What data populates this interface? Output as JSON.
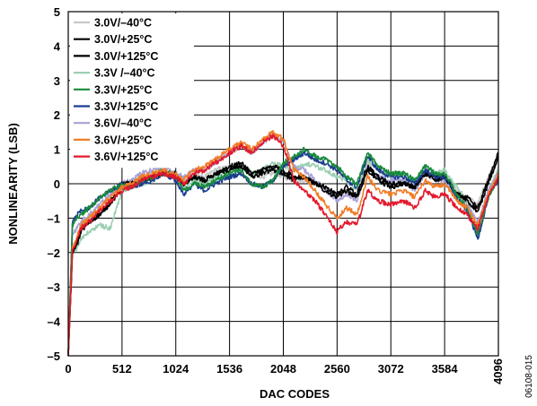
{
  "chart_data": {
    "type": "line",
    "title": "",
    "xlabel": "DAC CODES",
    "ylabel": "NONLINEARITY (LSB)",
    "xlim": [
      0,
      4096
    ],
    "ylim": [
      -5,
      5
    ],
    "xticks": [
      0,
      512,
      1024,
      1536,
      2048,
      2560,
      3072,
      3584,
      4096
    ],
    "yticks": [
      -5,
      -4,
      -3,
      -2,
      -1,
      0,
      1,
      2,
      3,
      4,
      5
    ],
    "grid": true,
    "legend_position": "top-left",
    "figure_id": "06108-015",
    "series": [
      {
        "name": "3.0V/–40°C",
        "color": "#c8c8c8",
        "x": [
          0,
          40,
          80,
          120,
          200,
          300,
          400,
          512,
          600,
          700,
          800,
          900,
          1024,
          1100,
          1200,
          1300,
          1400,
          1536,
          1650,
          1750,
          1850,
          1950,
          2048,
          2150,
          2250,
          2350,
          2450,
          2560,
          2650,
          2750,
          2850,
          2950,
          3072,
          3200,
          3300,
          3400,
          3500,
          3584,
          3700,
          3800,
          3900,
          4000,
          4096
        ],
        "y": [
          -5.0,
          -1.9,
          -1.7,
          -1.2,
          -1.0,
          -0.8,
          -0.6,
          0.0,
          0.0,
          0.2,
          0.3,
          0.4,
          0.3,
          0.1,
          0.3,
          0.2,
          0.4,
          0.5,
          0.5,
          0.3,
          0.2,
          0.3,
          0.2,
          0.1,
          0.1,
          0.0,
          -0.1,
          -0.4,
          -0.2,
          -0.4,
          0.6,
          0.2,
          0.0,
          0.1,
          0.0,
          0.4,
          0.2,
          0.3,
          -0.2,
          -0.4,
          -0.6,
          0.2,
          0.8
        ]
      },
      {
        "name": "3.0V/+25°C",
        "color": "#000000",
        "x": [
          0,
          40,
          80,
          120,
          200,
          300,
          400,
          512,
          600,
          700,
          800,
          900,
          1024,
          1100,
          1200,
          1300,
          1400,
          1536,
          1650,
          1750,
          1850,
          1950,
          2048,
          2150,
          2250,
          2350,
          2450,
          2560,
          2650,
          2750,
          2850,
          2950,
          3072,
          3200,
          3300,
          3400,
          3500,
          3584,
          3700,
          3800,
          3900,
          4000,
          4096
        ],
        "y": [
          -5.0,
          -1.9,
          -1.7,
          -1.3,
          -1.1,
          -0.9,
          -0.5,
          0.0,
          0.0,
          0.1,
          0.2,
          0.3,
          0.3,
          0.0,
          0.2,
          0.1,
          0.3,
          0.4,
          0.5,
          0.2,
          0.3,
          0.4,
          0.3,
          0.1,
          0.2,
          0.0,
          -0.1,
          -0.3,
          -0.1,
          -0.3,
          0.5,
          0.2,
          0.0,
          0.0,
          -0.1,
          0.3,
          0.2,
          0.2,
          -0.3,
          -0.4,
          -0.7,
          0.1,
          0.9
        ]
      },
      {
        "name": "3.0V/+125°C",
        "color": "#000000",
        "x": [
          0,
          40,
          80,
          120,
          200,
          300,
          400,
          512,
          600,
          700,
          800,
          900,
          1024,
          1100,
          1200,
          1300,
          1400,
          1536,
          1650,
          1750,
          1850,
          1950,
          2048,
          2150,
          2250,
          2350,
          2450,
          2560,
          2650,
          2750,
          2850,
          2950,
          3072,
          3200,
          3300,
          3400,
          3500,
          3584,
          3700,
          3800,
          3900,
          4000,
          4096
        ],
        "y": [
          -5.0,
          -2.0,
          -1.8,
          -1.4,
          -1.1,
          -0.9,
          -0.6,
          -0.1,
          0.0,
          0.1,
          0.2,
          0.3,
          0.2,
          0.0,
          0.2,
          0.1,
          0.3,
          0.5,
          0.6,
          0.3,
          0.4,
          0.5,
          0.4,
          0.2,
          0.2,
          0.0,
          -0.2,
          -0.4,
          -0.2,
          -0.4,
          0.4,
          0.1,
          -0.1,
          0.0,
          -0.1,
          0.3,
          0.1,
          0.2,
          -0.3,
          -0.5,
          -0.8,
          0.0,
          0.8
        ]
      },
      {
        "name": "3.3V /–40°C",
        "color": "#9ccfb2",
        "x": [
          0,
          40,
          80,
          120,
          200,
          300,
          400,
          512,
          600,
          700,
          800,
          900,
          1024,
          1100,
          1200,
          1300,
          1400,
          1536,
          1650,
          1750,
          1850,
          1950,
          2048,
          2150,
          2250,
          2350,
          2450,
          2560,
          2650,
          2750,
          2850,
          2950,
          3072,
          3200,
          3300,
          3400,
          3500,
          3584,
          3700,
          3800,
          3900,
          4000,
          4096
        ],
        "y": [
          -5.0,
          -2.0,
          -1.9,
          -1.6,
          -1.4,
          -1.2,
          -1.3,
          -0.2,
          -0.1,
          0.0,
          0.1,
          0.3,
          0.2,
          -0.1,
          0.1,
          0.0,
          0.2,
          0.4,
          0.5,
          0.3,
          0.4,
          0.6,
          0.5,
          0.4,
          0.6,
          0.5,
          0.4,
          0.2,
          0.1,
          -0.2,
          0.7,
          0.4,
          0.2,
          0.3,
          0.1,
          0.5,
          0.3,
          0.4,
          -0.1,
          -0.5,
          -1.3,
          -0.2,
          0.4
        ]
      },
      {
        "name": "3.3V/+25°C",
        "color": "#178a3c",
        "x": [
          0,
          40,
          80,
          120,
          200,
          300,
          400,
          512,
          600,
          700,
          800,
          900,
          1024,
          1100,
          1200,
          1300,
          1400,
          1536,
          1650,
          1750,
          1850,
          1950,
          2048,
          2150,
          2250,
          2350,
          2450,
          2560,
          2650,
          2750,
          2850,
          2950,
          3072,
          3200,
          3300,
          3400,
          3500,
          3584,
          3700,
          3800,
          3900,
          4000,
          4096
        ],
        "y": [
          -5.0,
          -1.2,
          -1.0,
          -0.9,
          -0.7,
          -0.4,
          -0.2,
          0.0,
          -0.1,
          0.1,
          0.2,
          0.4,
          0.2,
          -0.2,
          0.0,
          -0.1,
          0.1,
          0.3,
          0.4,
          0.0,
          -0.1,
          0.1,
          0.6,
          0.8,
          1.0,
          0.8,
          0.7,
          0.5,
          0.2,
          0.0,
          0.9,
          0.5,
          0.3,
          0.3,
          0.1,
          0.5,
          0.3,
          0.3,
          -0.3,
          -0.7,
          -1.5,
          -0.4,
          0.2
        ]
      },
      {
        "name": "3.3V/+125°C",
        "color": "#1a3d8f",
        "x": [
          0,
          40,
          80,
          120,
          200,
          300,
          400,
          512,
          600,
          700,
          800,
          900,
          1024,
          1100,
          1200,
          1300,
          1400,
          1536,
          1650,
          1750,
          1850,
          1950,
          2048,
          2150,
          2250,
          2350,
          2450,
          2560,
          2650,
          2750,
          2850,
          2950,
          3072,
          3200,
          3300,
          3400,
          3500,
          3584,
          3700,
          3800,
          3900,
          4000,
          4096
        ],
        "y": [
          -5.0,
          -1.1,
          -0.9,
          -0.8,
          -0.7,
          -0.4,
          -0.2,
          0.0,
          -0.1,
          0.0,
          0.1,
          0.3,
          0.1,
          -0.3,
          0.0,
          -0.2,
          0.0,
          0.2,
          0.3,
          0.0,
          -0.1,
          0.1,
          0.5,
          0.7,
          0.9,
          0.7,
          0.6,
          0.4,
          0.1,
          -0.1,
          0.8,
          0.4,
          0.2,
          0.2,
          0.0,
          0.4,
          0.2,
          0.2,
          -0.4,
          -0.8,
          -1.6,
          -0.4,
          0.1
        ]
      },
      {
        "name": "3.6V/–40°C",
        "color": "#a7a2d6",
        "x": [
          0,
          40,
          80,
          120,
          200,
          300,
          400,
          512,
          600,
          700,
          800,
          900,
          1024,
          1100,
          1200,
          1300,
          1400,
          1536,
          1650,
          1750,
          1850,
          1950,
          2048,
          2150,
          2250,
          2350,
          2450,
          2560,
          2650,
          2750,
          2850,
          2950,
          3072,
          3200,
          3300,
          3400,
          3500,
          3584,
          3700,
          3800,
          3900,
          4000,
          4096
        ],
        "y": [
          -5.0,
          -1.5,
          -1.3,
          -1.1,
          -0.9,
          -0.6,
          -0.3,
          0.0,
          0.1,
          0.3,
          0.4,
          0.5,
          0.3,
          0.2,
          0.4,
          0.4,
          0.6,
          0.9,
          1.1,
          0.9,
          1.2,
          1.4,
          1.2,
          0.5,
          0.4,
          0.1,
          -0.2,
          -0.5,
          -0.3,
          -0.5,
          0.5,
          0.2,
          0.1,
          0.1,
          -0.2,
          0.3,
          0.1,
          0.1,
          -0.4,
          -0.6,
          -1.1,
          -0.2,
          0.3
        ]
      },
      {
        "name": "3.6V/+25°C",
        "color": "#f07d28",
        "x": [
          0,
          40,
          80,
          120,
          200,
          300,
          400,
          512,
          600,
          700,
          800,
          900,
          1024,
          1100,
          1200,
          1300,
          1400,
          1536,
          1650,
          1750,
          1850,
          1950,
          2048,
          2150,
          2250,
          2350,
          2450,
          2560,
          2650,
          2750,
          2850,
          2950,
          3072,
          3200,
          3300,
          3400,
          3500,
          3584,
          3700,
          3800,
          3900,
          4000,
          4096
        ],
        "y": [
          -5.0,
          -1.8,
          -1.6,
          -1.2,
          -1.0,
          -0.7,
          -0.4,
          -0.1,
          0.0,
          0.2,
          0.3,
          0.4,
          0.3,
          0.1,
          0.4,
          0.5,
          0.7,
          1.0,
          1.2,
          1.0,
          1.3,
          1.5,
          1.3,
          0.4,
          0.2,
          -0.2,
          -0.6,
          -1.0,
          -0.7,
          -0.9,
          0.2,
          -0.2,
          -0.3,
          -0.2,
          -0.4,
          0.1,
          -0.1,
          0.0,
          -0.5,
          -0.7,
          -1.2,
          -0.3,
          0.3
        ]
      },
      {
        "name": "3.6V/+125°C",
        "color": "#e2192b",
        "x": [
          0,
          40,
          80,
          120,
          200,
          300,
          400,
          512,
          600,
          700,
          800,
          900,
          1024,
          1100,
          1200,
          1300,
          1400,
          1536,
          1650,
          1750,
          1850,
          1950,
          2048,
          2150,
          2250,
          2350,
          2450,
          2560,
          2650,
          2750,
          2850,
          2950,
          3072,
          3200,
          3300,
          3400,
          3500,
          3584,
          3700,
          3800,
          3900,
          4000,
          4096
        ],
        "y": [
          -5.0,
          -1.9,
          -1.7,
          -1.3,
          -1.1,
          -0.8,
          -0.5,
          -0.2,
          -0.1,
          0.1,
          0.2,
          0.3,
          0.2,
          0.0,
          0.3,
          0.4,
          0.6,
          0.9,
          1.1,
          0.9,
          1.2,
          1.4,
          1.1,
          0.1,
          -0.2,
          -0.5,
          -0.9,
          -1.4,
          -1.1,
          -1.2,
          -0.2,
          -0.5,
          -0.6,
          -0.5,
          -0.7,
          -0.2,
          -0.4,
          -0.3,
          -0.7,
          -0.9,
          -1.3,
          -0.4,
          0.2
        ]
      }
    ]
  }
}
